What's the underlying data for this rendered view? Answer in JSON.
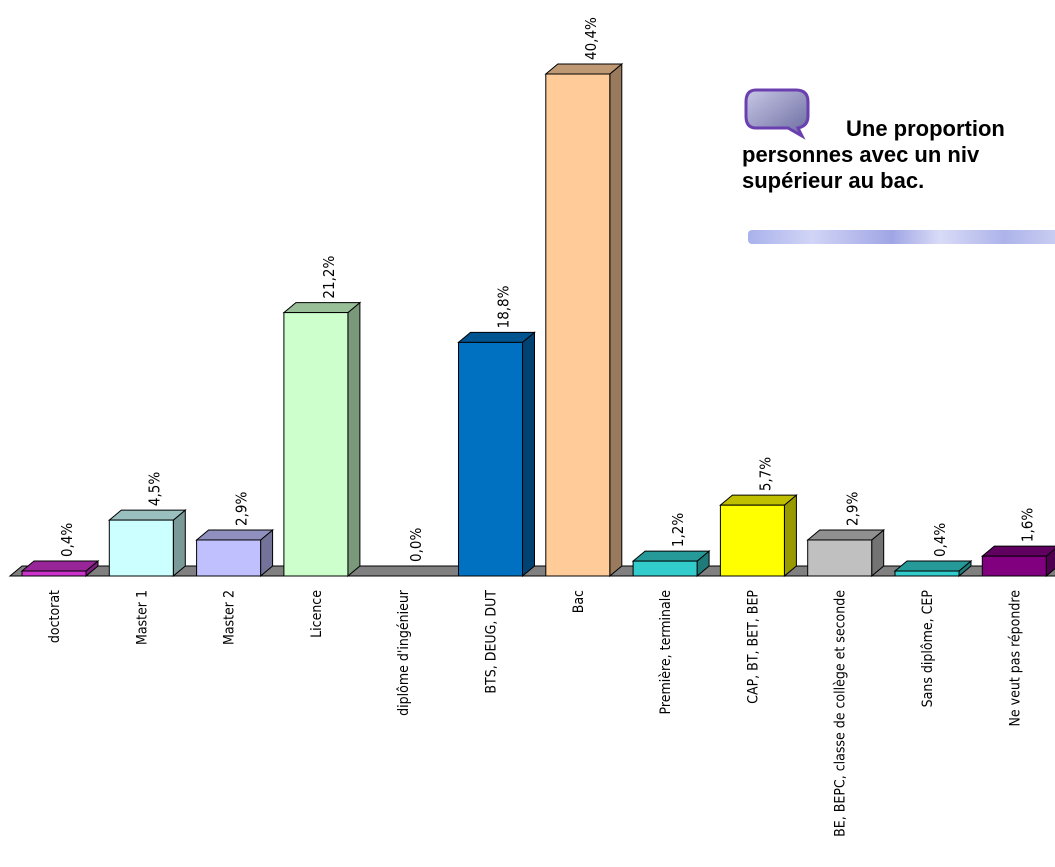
{
  "chart_data": {
    "type": "bar",
    "categories": [
      "doctorat",
      "Master 1",
      "Master 2",
      "Licence",
      "diplôme d'ingénieur",
      "BTS, DEUG, DUT",
      "Bac",
      "Première, terminale",
      "CAP, BT, BET, BEP",
      "BE, BEPC, classe de collège et seconde",
      "Sans diplôme, CEP",
      "Ne veut pas répondre"
    ],
    "values": [
      0.4,
      4.5,
      2.9,
      21.2,
      0.0,
      18.8,
      40.4,
      1.2,
      5.7,
      2.9,
      0.4,
      1.6
    ],
    "labels": [
      "0,4%",
      "4,5%",
      "2,9%",
      "21,2%",
      "0,0%",
      "18,8%",
      "40,4%",
      "1,2%",
      "5,7%",
      "2,9%",
      "0,4%",
      "1,6%"
    ],
    "colors": [
      "#cc33cc",
      "#ccffff",
      "#c0c0ff",
      "#ccffcc",
      "#ffffff",
      "#0070c0",
      "#ffcc99",
      "#33cccc",
      "#ffff00",
      "#c0c0c0",
      "#33cccc",
      "#800080"
    ],
    "ylim": [
      0,
      40.4
    ],
    "grid": false,
    "legend": "none"
  },
  "callout": {
    "line1": "Une proportion",
    "line2": "personnes avec un niv",
    "line3": "supérieur au bac."
  }
}
